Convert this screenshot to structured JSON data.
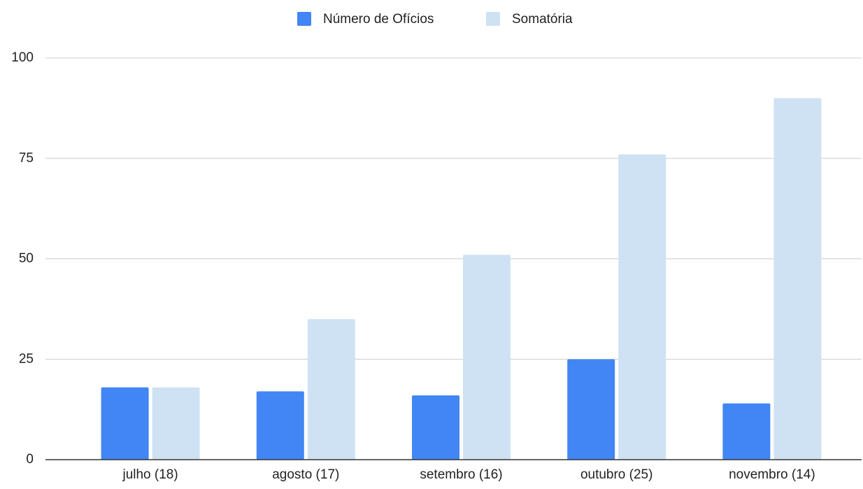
{
  "chart_data": {
    "type": "bar",
    "categories": [
      "julho (18)",
      "agosto (17)",
      "setembro (16)",
      "outubro (25)",
      "novembro (14)"
    ],
    "series": [
      {
        "name": "Número de Ofícios",
        "color": "#4285f4",
        "values": [
          18,
          17,
          16,
          25,
          14
        ]
      },
      {
        "name": "Somatória",
        "color": "#cfe2f3",
        "values": [
          18,
          35,
          51,
          76,
          90
        ]
      }
    ],
    "ylim": [
      0,
      100
    ],
    "yticks": [
      0,
      25,
      50,
      75,
      100
    ],
    "grid": true,
    "legend": "top"
  }
}
